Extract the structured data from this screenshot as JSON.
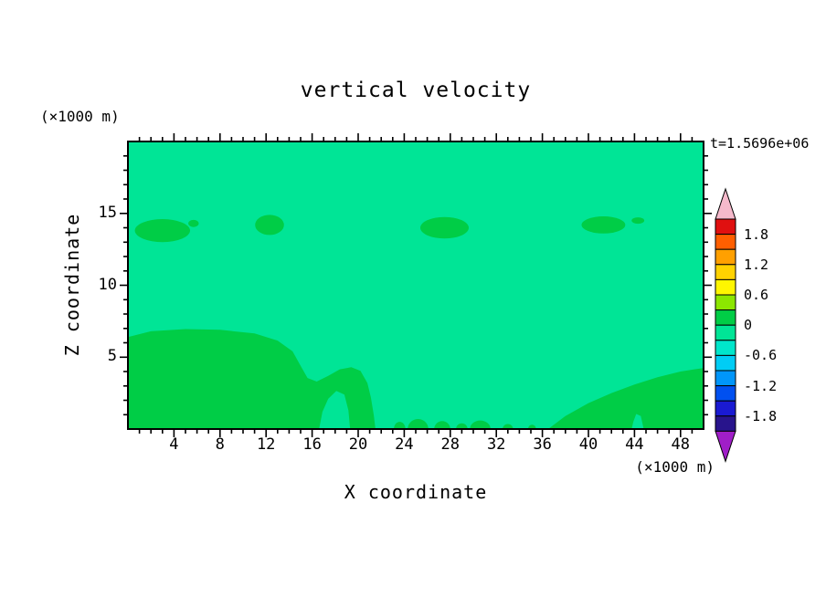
{
  "chart_data": {
    "type": "heatmap",
    "title": "vertical velocity",
    "xlabel": "X coordinate",
    "ylabel": "Z coordinate",
    "x_unit_label": "(×1000 m)",
    "y_unit_label": "(×1000 m)",
    "timestamp_label": "t=1.5696e+06",
    "xlim": [
      0,
      50
    ],
    "ylim": [
      0,
      20
    ],
    "x_ticks": [
      4,
      8,
      12,
      16,
      20,
      24,
      28,
      32,
      36,
      40,
      44,
      48
    ],
    "x_minor_tick_interval": 1,
    "y_ticks": [
      15,
      10,
      5
    ],
    "y_minor_tick_interval": 1,
    "grid": false,
    "legend_position": "colorbar-right",
    "colorbar": {
      "min": -2.1,
      "max": 2.1,
      "step": 0.3,
      "labels": [
        "1.8",
        "1.2",
        "0.6",
        "0",
        "-0.6",
        "-1.2",
        "-1.8"
      ],
      "segment_colors": [
        "#e01010",
        "#ff5f00",
        "#ffa000",
        "#ffd200",
        "#fff600",
        "#8ce600",
        "#00cd46",
        "#00e596",
        "#00e6cb",
        "#00cdf5",
        "#0096fa",
        "#0050f0",
        "#1a1ad2",
        "#28148c"
      ],
      "over_color": "#f5b9cb",
      "under_color": "#a01ec8"
    },
    "field": {
      "background_value_band": "-0.3 to 0",
      "background_color": "#00e596",
      "patch_value_band": "0 to 0.3",
      "patch_color": "#00cd46",
      "patches": [
        {
          "x": 3.0,
          "z": 13.8,
          "rx": 2.4,
          "rz": 0.8
        },
        {
          "x": 5.7,
          "z": 14.3,
          "rx": 0.45,
          "rz": 0.25
        },
        {
          "x": 12.3,
          "z": 14.2,
          "rx": 1.25,
          "rz": 0.7
        },
        {
          "x": 27.5,
          "z": 14.0,
          "rx": 2.1,
          "rz": 0.75
        },
        {
          "x": 41.3,
          "z": 14.2,
          "rx": 1.9,
          "rz": 0.6
        },
        {
          "x": 44.3,
          "z": 14.5,
          "rx": 0.55,
          "rz": 0.22
        },
        {
          "x": 23.6,
          "z": 0,
          "rx": 0.5,
          "rz": 0.5
        },
        {
          "x": 25.2,
          "z": 0,
          "rx": 0.9,
          "rz": 0.7
        },
        {
          "x": 27.3,
          "z": 0,
          "rx": 0.7,
          "rz": 0.55
        },
        {
          "x": 29.0,
          "z": 0,
          "rx": 0.5,
          "rz": 0.4
        },
        {
          "x": 30.6,
          "z": 0,
          "rx": 0.9,
          "rz": 0.6
        },
        {
          "x": 33.0,
          "z": 0,
          "rx": 0.45,
          "rz": 0.35
        },
        {
          "x": 35.1,
          "z": 0,
          "rx": 0.35,
          "rz": 0.3
        }
      ],
      "regions": [
        {
          "name": "lower-left-updraft",
          "points": [
            [
              0,
              0
            ],
            [
              0,
              6.4
            ],
            [
              2,
              6.8
            ],
            [
              5,
              6.95
            ],
            [
              8,
              6.9
            ],
            [
              11,
              6.65
            ],
            [
              13,
              6.15
            ],
            [
              14.3,
              5.4
            ],
            [
              15.0,
              4.4
            ],
            [
              15.6,
              3.55
            ],
            [
              16.4,
              3.3
            ],
            [
              17.4,
              3.7
            ],
            [
              18.4,
              4.15
            ],
            [
              19.4,
              4.3
            ],
            [
              20.2,
              4.05
            ],
            [
              20.8,
              3.2
            ],
            [
              21.1,
              2.2
            ],
            [
              21.35,
              1.0
            ],
            [
              21.5,
              0
            ],
            [
              19.3,
              0
            ],
            [
              19.15,
              1.3
            ],
            [
              18.8,
              2.4
            ],
            [
              18.1,
              2.65
            ],
            [
              17.4,
              2.1
            ],
            [
              16.9,
              1.2
            ],
            [
              16.6,
              0
            ]
          ]
        },
        {
          "name": "lower-right-updraft",
          "points": [
            [
              36.5,
              0
            ],
            [
              38,
              0.9
            ],
            [
              40,
              1.8
            ],
            [
              42,
              2.5
            ],
            [
              44,
              3.1
            ],
            [
              46,
              3.6
            ],
            [
              48,
              4.0
            ],
            [
              50,
              4.25
            ],
            [
              50,
              0
            ],
            [
              44.8,
              0
            ],
            [
              44.55,
              0.9
            ],
            [
              44.15,
              1.05
            ],
            [
              43.9,
              0.5
            ],
            [
              43.75,
              0
            ]
          ]
        }
      ]
    }
  }
}
